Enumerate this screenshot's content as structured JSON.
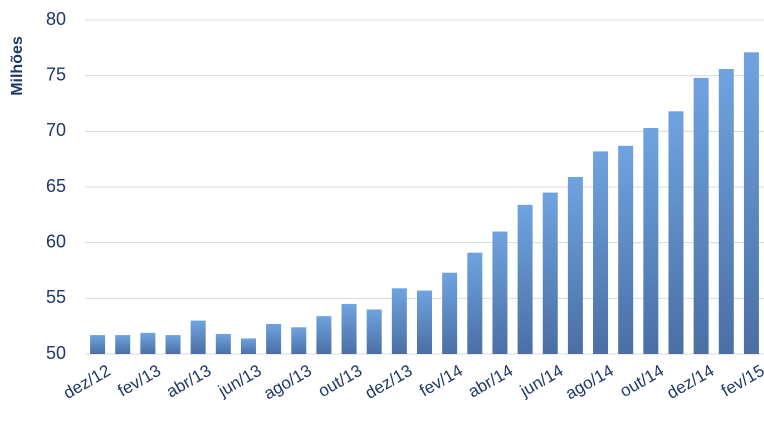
{
  "chart_data": {
    "type": "bar",
    "y_label": "Milhões",
    "categories": [
      "dez/12",
      null,
      "fev/13",
      null,
      "abr/13",
      null,
      "jun/13",
      null,
      "ago/13",
      null,
      "out/13",
      null,
      "dez/13",
      null,
      "fev/14",
      null,
      "abr/14",
      null,
      "jun/14",
      null,
      "ago/14",
      null,
      "out/14",
      null,
      "dez/14",
      null,
      "fev/15"
    ],
    "values": [
      51.7,
      51.7,
      51.9,
      51.7,
      53.0,
      51.8,
      51.4,
      52.7,
      52.4,
      53.4,
      54.5,
      54.0,
      55.9,
      55.7,
      57.3,
      59.1,
      61.0,
      63.4,
      64.5,
      65.9,
      68.2,
      68.7,
      70.3,
      71.8,
      74.8,
      75.6,
      77.1
    ],
    "color": "#6fa3e0",
    "ylim": [
      50,
      80
    ],
    "yticks": [
      50,
      55,
      60,
      65,
      70,
      75,
      80
    ],
    "grid": true
  }
}
